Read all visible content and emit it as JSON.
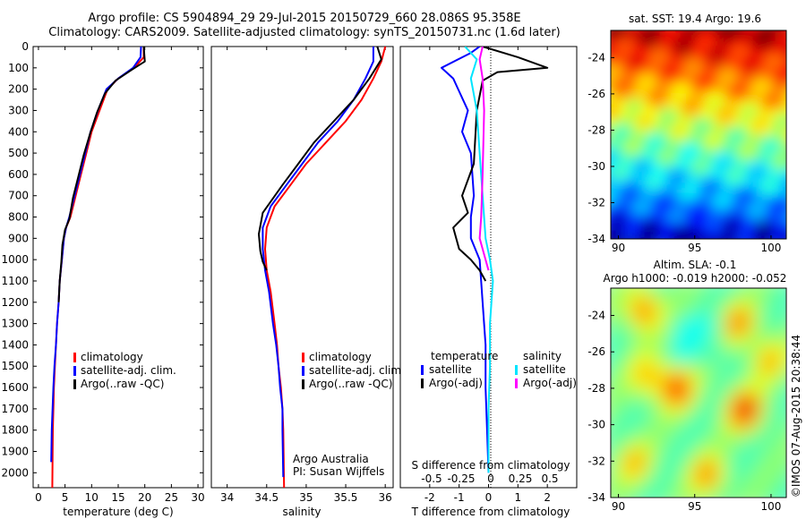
{
  "header": {
    "title_line1": "Argo profile: CS 5904894_29 29-Jul-2015 20150729_660 28.086S 95.358E",
    "title_line2": "Climatology: CARS2009. Satellite-adjusted climatology: synTS_20150731.nc (1.6d later)"
  },
  "colors": {
    "climatology": "#ff0000",
    "satellite": "#0000ff",
    "argo": "#000000",
    "satellite_salinity": "#00e5ff",
    "argo_salinity": "#ff00ff"
  },
  "depth_axis": {
    "ylim": [
      2070,
      0
    ],
    "ticks": [
      0,
      100,
      200,
      300,
      400,
      500,
      600,
      700,
      800,
      900,
      1000,
      1100,
      1200,
      1300,
      1400,
      1500,
      1600,
      1700,
      1800,
      1900,
      2000
    ]
  },
  "chart_data": [
    {
      "type": "line",
      "id": "temperature",
      "xlabel": "temperature (deg C)",
      "xlim": [
        -1,
        31
      ],
      "xticks": [
        0,
        5,
        10,
        15,
        20,
        25,
        30
      ],
      "legend": {
        "placement": "lower-left",
        "items": [
          "climatology",
          "satellite-adj. clim.",
          "Argo(..raw -QC)"
        ]
      },
      "series": [
        {
          "name": "climatology",
          "color": "#ff0000",
          "x": [
            19.8,
            19.8,
            18.0,
            15.0,
            13.0,
            11.5,
            10.0,
            9.0,
            8.0,
            7.0,
            6.0,
            5.2,
            4.8,
            4.4,
            4.0,
            3.8,
            3.5,
            3.3,
            3.1,
            2.9,
            2.7,
            2.6
          ],
          "y": [
            0,
            50,
            100,
            150,
            200,
            300,
            400,
            500,
            600,
            700,
            800,
            850,
            900,
            1000,
            1100,
            1200,
            1300,
            1400,
            1500,
            1600,
            1800,
            2070
          ]
        },
        {
          "name": "satellite-adj. clim.",
          "color": "#0000ff",
          "x": [
            19.3,
            19.2,
            17.8,
            15.0,
            12.8,
            11.2,
            9.8,
            8.8,
            7.8,
            6.8,
            5.8,
            5.2,
            4.8,
            4.4,
            4.0,
            3.8,
            3.5,
            3.3,
            3.0,
            2.8,
            2.5,
            2.4
          ],
          "y": [
            0,
            50,
            100,
            150,
            200,
            300,
            400,
            500,
            600,
            700,
            800,
            850,
            900,
            1000,
            1100,
            1200,
            1300,
            1400,
            1500,
            1600,
            1800,
            1950
          ]
        },
        {
          "name": "Argo(..raw -QC)",
          "color": "#000000",
          "x": [
            19.8,
            20.0,
            17.5,
            14.5,
            12.5,
            11.0,
            9.7,
            8.5,
            7.5,
            6.5,
            5.8,
            5.0,
            4.5,
            4.3,
            4.0,
            3.8
          ],
          "y": [
            0,
            70,
            110,
            160,
            220,
            310,
            410,
            510,
            610,
            710,
            810,
            860,
            930,
            1010,
            1100,
            1200
          ]
        }
      ]
    },
    {
      "type": "line",
      "id": "salinity",
      "xlabel": "salinity",
      "xlim": [
        33.8,
        36.1
      ],
      "xticks": [
        34,
        34.5,
        35,
        35.5,
        36
      ],
      "legend": {
        "placement": "lower-left",
        "items": [
          "climatology",
          "satellite-adj. clim.",
          "Argo(..raw -QC)"
        ]
      },
      "annotation": [
        "Argo Australia",
        "PI: Susan Wijffels"
      ],
      "series": [
        {
          "name": "climatology",
          "color": "#ff0000",
          "x": [
            36.0,
            35.95,
            35.85,
            35.7,
            35.5,
            35.25,
            35.0,
            34.8,
            34.6,
            34.5,
            34.48,
            34.5,
            34.55,
            34.6,
            34.63,
            34.65,
            34.68,
            34.7,
            34.71,
            34.72
          ],
          "y": [
            0,
            70,
            150,
            250,
            350,
            450,
            550,
            650,
            750,
            850,
            950,
            1050,
            1150,
            1300,
            1400,
            1500,
            1600,
            1700,
            1800,
            2070
          ]
        },
        {
          "name": "satellite-adj. clim.",
          "color": "#0000ff",
          "x": [
            35.85,
            35.85,
            35.75,
            35.6,
            35.4,
            35.15,
            34.95,
            34.75,
            34.55,
            34.45,
            34.45,
            34.48,
            34.53,
            34.58,
            34.62,
            34.65,
            34.67,
            34.7,
            34.7,
            34.71
          ],
          "y": [
            0,
            70,
            150,
            250,
            350,
            450,
            550,
            650,
            750,
            850,
            950,
            1050,
            1150,
            1300,
            1400,
            1500,
            1600,
            1700,
            1800,
            2020
          ]
        },
        {
          "name": "Argo(..raw -QC)",
          "color": "#000000",
          "x": [
            35.9,
            35.95,
            35.8,
            35.6,
            35.35,
            35.1,
            34.9,
            34.7,
            34.45,
            34.4,
            34.42,
            34.45,
            34.5
          ],
          "y": [
            0,
            60,
            150,
            250,
            350,
            450,
            550,
            650,
            780,
            880,
            960,
            1010,
            1050
          ]
        }
      ]
    },
    {
      "type": "line",
      "id": "differences",
      "xlabel": "T difference from climatology",
      "top_label": "S difference from climatology",
      "xlim": [
        -3,
        3
      ],
      "xticks": [
        -2,
        -1,
        0,
        1,
        2
      ],
      "xtick_labels": [
        "-2",
        "-1",
        "0",
        "1",
        "2"
      ],
      "top_ticks": [
        "-0.5",
        "-0.25",
        "0",
        "0.25",
        "0.5"
      ],
      "legend": {
        "placement": "lower",
        "headers": [
          "temperature",
          "salinity"
        ],
        "items": [
          "satellite",
          "Argo(-adj)",
          "satellite",
          "Argo(-adj)"
        ]
      },
      "series": [
        {
          "name": "satellite",
          "group": "temperature",
          "color": "#0000ff",
          "x": [
            -0.3,
            -0.6,
            -1.6,
            -1.2,
            -0.7,
            -0.9,
            -0.6,
            -0.5,
            -0.6,
            -0.6,
            -0.3,
            -0.2,
            -0.1,
            -0.1,
            -0.05,
            0
          ],
          "y": [
            0,
            30,
            100,
            150,
            300,
            400,
            500,
            700,
            800,
            900,
            1000,
            1200,
            1400,
            1600,
            1800,
            2000
          ]
        },
        {
          "name": "Argo(-adj)",
          "group": "temperature",
          "color": "#000000",
          "x": [
            -0.2,
            1.0,
            2.0,
            0.3,
            -0.2,
            -0.4,
            -0.5,
            -0.9,
            -0.7,
            -1.2,
            -1.0,
            -0.6,
            -0.3,
            -0.1
          ],
          "y": [
            0,
            50,
            100,
            120,
            160,
            300,
            550,
            700,
            780,
            850,
            950,
            1000,
            1050,
            1100
          ]
        },
        {
          "name": "satellite",
          "group": "salinity",
          "color": "#00e5ff",
          "x": [
            -0.8,
            -0.4,
            -0.6,
            -0.4,
            -0.3,
            -0.2,
            -0.1,
            0.05,
            0.15,
            0.05,
            0.05,
            0,
            0,
            0
          ],
          "y": [
            0,
            60,
            150,
            300,
            500,
            700,
            900,
            1000,
            1100,
            1300,
            1500,
            1700,
            1900,
            2000
          ]
        },
        {
          "name": "Argo(-adj)",
          "group": "salinity",
          "color": "#ff00ff",
          "x": [
            -0.2,
            -0.3,
            -0.2,
            -0.15,
            -0.2,
            -0.25,
            -0.3,
            -0.1,
            0
          ],
          "y": [
            0,
            60,
            150,
            300,
            600,
            800,
            900,
            1000,
            1050
          ]
        }
      ]
    },
    {
      "type": "heatmap",
      "id": "sst-map",
      "title": "sat. SST: 19.4  Argo: 19.6",
      "xlim": [
        89.5,
        101
      ],
      "ylim": [
        -34,
        -22.5
      ],
      "xticks": [
        90,
        95,
        100
      ],
      "yticks": [
        -24,
        -26,
        -28,
        -30,
        -32,
        -34
      ],
      "colormap": "jet"
    },
    {
      "type": "heatmap",
      "id": "sla-map",
      "title_line1": "Altim. SLA: -0.1",
      "title_line2": "Argo h1000: -0.019 h2000: -0.052",
      "xlim": [
        89.5,
        101
      ],
      "ylim": [
        -34,
        -22.5
      ],
      "xticks": [
        90,
        95,
        100
      ],
      "yticks": [
        -24,
        -26,
        -28,
        -30,
        -32,
        -34
      ],
      "colormap": "jet"
    }
  ],
  "side_label": "©IMOS 07-Aug-2015 20:38:44"
}
